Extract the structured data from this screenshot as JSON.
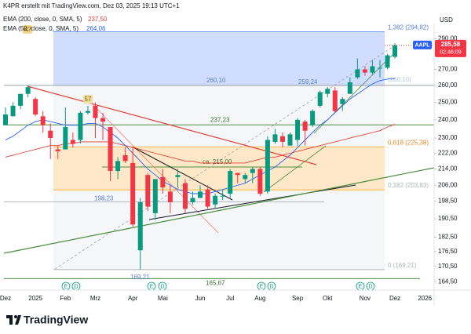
{
  "header": {
    "credit": "K4PR erstellt mit TradingView.com, Dez 03, 2025 19:13 UTC+1",
    "indicators": [
      {
        "label": "EMA (200, close, 0, SMA, 5)",
        "value": "237,50"
      },
      {
        "label": "EMA (50, close, 0, SMA, 5)",
        "value": "264,06"
      }
    ]
  },
  "chart_data": {
    "type": "candlestick",
    "currency": "USD",
    "symbol": "AAPL",
    "last_price": {
      "value": 285.58,
      "label": "285,58"
    },
    "countdown": "02:46:09",
    "categories": [
      "Dez",
      null,
      null,
      null,
      "2025",
      null,
      null,
      null,
      "Feb",
      null,
      null,
      null,
      "Mrz",
      null,
      null,
      null,
      null,
      "Apr",
      null,
      null,
      null,
      "Mai",
      null,
      null,
      null,
      null,
      "Jun",
      null,
      null,
      null,
      "Jul",
      null,
      null,
      null,
      "Aug",
      null,
      null,
      null,
      null,
      "Sep",
      null,
      null,
      null,
      "Okt",
      null,
      null,
      null,
      null,
      "Nov",
      null,
      null,
      null,
      "Dez",
      null,
      null,
      null,
      "2026"
    ],
    "open": [
      237,
      242,
      248,
      255,
      252,
      242,
      234,
      224,
      224,
      229,
      229,
      244,
      248,
      241,
      236,
      213,
      221,
      217,
      177,
      211,
      193,
      210,
      203,
      210,
      207,
      198,
      200,
      204,
      197,
      201,
      202,
      212,
      209,
      212,
      214,
      203,
      228,
      231,
      226,
      229,
      239,
      237,
      248,
      255,
      257,
      249,
      255,
      265,
      270,
      268,
      271,
      271,
      278,
      null,
      null,
      null,
      null
    ],
    "high": [
      247,
      250,
      255,
      260.1,
      253,
      245,
      238,
      226,
      247,
      233,
      245,
      248,
      250,
      244,
      236,
      220,
      225,
      225,
      200,
      212,
      209,
      214,
      206,
      214,
      209,
      203,
      206,
      206,
      202,
      204,
      214,
      212,
      212,
      215,
      215,
      231,
      235,
      233,
      233,
      241,
      240,
      246,
      257,
      259,
      259,
      253,
      265,
      277,
      272,
      276,
      276,
      280,
      287,
      null,
      null,
      null,
      null
    ],
    "low": [
      237,
      242,
      246,
      253,
      242,
      233,
      219,
      219,
      224,
      225,
      227,
      243,
      230,
      229,
      208,
      209,
      217,
      187,
      169.21,
      194,
      190,
      202,
      193,
      205,
      193,
      197,
      200,
      195,
      195,
      199,
      200,
      207,
      207,
      207,
      201,
      202,
      227,
      225,
      226,
      226,
      226,
      236,
      247,
      253,
      244,
      245,
      255,
      264,
      266,
      267,
      265,
      270,
      277,
      null,
      null,
      null,
      null
    ],
    "close": [
      243,
      248,
      255,
      259,
      243,
      237,
      230,
      223,
      236,
      227,
      244,
      245,
      241,
      239,
      213,
      218,
      218,
      188,
      198,
      196,
      209,
      205,
      198,
      211,
      195,
      200,
      203,
      196,
      201,
      201,
      213,
      211,
      211,
      214,
      202,
      229,
      232,
      228,
      232,
      240,
      234,
      245,
      256,
      258,
      245,
      252,
      262,
      270,
      268,
      272,
      271,
      279,
      285.58,
      null,
      null,
      null,
      null
    ],
    "up_color": "#089981",
    "down_color": "#f23645",
    "series": [
      {
        "name": "EMA 200",
        "color": "#e0413a",
        "values": [
          220,
          221,
          222,
          223,
          224,
          225,
          226,
          226,
          227,
          227,
          228,
          228,
          228,
          228,
          228,
          227,
          226,
          225,
          224,
          223,
          222,
          221,
          220,
          219,
          218,
          218,
          217,
          217,
          217,
          217,
          217,
          217,
          217,
          218,
          219,
          220,
          220,
          221,
          222,
          223,
          224,
          225,
          226,
          227,
          228,
          229,
          230,
          231,
          232,
          233,
          234,
          236,
          237.5,
          null,
          null,
          null,
          null
        ]
      },
      {
        "name": "EMA 50",
        "color": "#2962ff",
        "values": [
          229,
          231,
          234,
          237,
          239,
          240,
          239,
          238,
          237,
          237,
          237,
          238,
          238,
          236,
          233,
          230,
          226,
          222,
          218,
          214,
          211,
          208,
          206,
          204,
          203,
          202,
          202,
          202,
          203,
          204,
          205,
          206,
          207,
          209,
          211,
          213,
          215,
          218,
          221,
          225,
          229,
          233,
          237,
          240,
          244,
          248,
          252,
          255,
          258,
          261,
          263,
          264,
          264.06,
          null,
          null,
          null,
          null
        ]
      }
    ],
    "ylim": [
      161.3,
      300.5
    ],
    "log_scale": true,
    "grid": false,
    "yticks": [
      {
        "value": 290,
        "label": "290,00"
      },
      {
        "value": 280,
        "label": "280,00"
      },
      {
        "value": 270,
        "label": "270,00"
      },
      {
        "value": 260,
        "label": "260,00"
      },
      {
        "value": 250,
        "label": "250,00"
      },
      {
        "value": 240,
        "label": "240,00"
      },
      {
        "value": 230,
        "label": "230,00"
      },
      {
        "value": 222,
        "label": "222,00"
      },
      {
        "value": 214,
        "label": "214,00"
      },
      {
        "value": 206,
        "label": "206,00"
      },
      {
        "value": 198.5,
        "label": "198,50"
      },
      {
        "value": 190.5,
        "label": "190,50"
      },
      {
        "value": 182.5,
        "label": "182,50"
      },
      {
        "value": 176.5,
        "label": "176,50"
      },
      {
        "value": 170.5,
        "label": "170,50"
      },
      {
        "value": 164.5,
        "label": "164,50"
      }
    ],
    "levels": [
      {
        "value": 260.1,
        "label": "260,10",
        "color": "#9aa0a6"
      },
      {
        "value": 237.23,
        "label": "237,23",
        "color": "#4c8c3f"
      },
      {
        "value": 198.23,
        "label": "198,23",
        "color": "#b0b4bb"
      },
      {
        "value": 165.67,
        "label": "165,67",
        "color": "#4c8c3f"
      },
      {
        "value": 215,
        "label": "ca. 215,00",
        "color": "#4c8c3f"
      }
    ],
    "price_labels": [
      {
        "value": 169.21,
        "label": "169,21"
      },
      {
        "value": 259.24,
        "label": "259,24"
      }
    ],
    "fib": [
      {
        "value": 294.82,
        "label": "1,382 (294,82)"
      },
      {
        "value": 260.1,
        "label": "(260,10)"
      },
      {
        "value": 225.38,
        "label": "0,618 (225,38)"
      },
      {
        "value": 203.83,
        "label": "0,382 (203,83)"
      },
      {
        "value": 169.21,
        "label": "0 (169,21)"
      }
    ],
    "markers": [
      "K?",
      "57"
    ],
    "events": [
      "E",
      "D",
      "E",
      "D",
      "E",
      "D",
      "E",
      "D"
    ]
  },
  "footer": {
    "brand": "TradingView"
  }
}
